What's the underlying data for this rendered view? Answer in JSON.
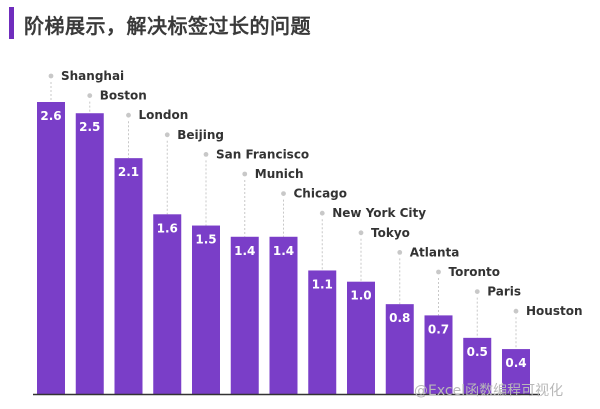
{
  "header": {
    "title": "阶梯展示，解决标签过长的问题"
  },
  "chart_data": {
    "type": "bar",
    "categories": [
      "Shanghai",
      "Boston",
      "London",
      "Beijing",
      "San Francisco",
      "Munich",
      "Chicago",
      "New York City",
      "Tokyo",
      "Atlanta",
      "Toronto",
      "Paris",
      "Houston"
    ],
    "values": [
      2.6,
      2.5,
      2.1,
      1.6,
      1.5,
      1.4,
      1.4,
      1.1,
      1.0,
      0.8,
      0.7,
      0.5,
      0.4
    ],
    "value_labels": [
      "2.6",
      "2.5",
      "2.1",
      "1.6",
      "1.5",
      "1.4",
      "1.4",
      "1.1",
      "1.0",
      "0.8",
      "0.7",
      "0.5",
      "0.4"
    ],
    "title": "",
    "xlabel": "",
    "ylabel": "",
    "ylim": [
      0,
      2.6
    ],
    "grid": false,
    "legend": "none",
    "labels_staggered": true,
    "colors": {
      "bar": "#7a3ec8",
      "leader": "#c8c8c8",
      "axis": "#333333"
    }
  },
  "watermark": {
    "text": "@Excel函数编程可视化"
  }
}
